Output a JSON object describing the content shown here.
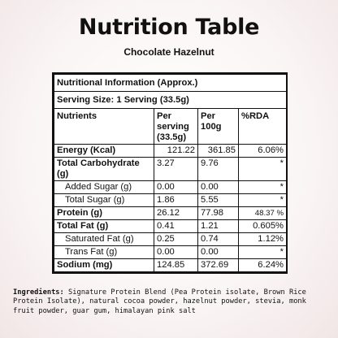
{
  "header": {
    "title": "Nutrition Table",
    "subtitle": "Chocolate Hazelnut"
  },
  "table": {
    "info_title": "Nutritional Information (Approx.)",
    "serving_size": "Serving Size: 1 Serving (33.5g)",
    "columns": [
      "Nutrients",
      "Per serving (33.5g)",
      "Per 100g",
      "%RDA"
    ],
    "rows": [
      {
        "nutrient": "Energy (Kcal)",
        "per_serving": "121.22",
        "per_100g": "361.85",
        "rda": "6.06%"
      },
      {
        "nutrient": "Total Carbohydrate (g)",
        "per_serving": "3.27",
        "per_100g": "9.76",
        "rda": "*"
      },
      {
        "nutrient": "Added Sugar (g)",
        "per_serving": "0.00",
        "per_100g": "0.00",
        "rda": "*"
      },
      {
        "nutrient": "Total Sugar (g)",
        "per_serving": "1.86",
        "per_100g": "5.55",
        "rda": "*"
      },
      {
        "nutrient": "Protein (g)",
        "per_serving": "26.12",
        "per_100g": "77.98",
        "rda": "48.37 %"
      },
      {
        "nutrient": "Total Fat (g)",
        "per_serving": "0.41",
        "per_100g": "1.21",
        "rda": "0.605%"
      },
      {
        "nutrient": "Saturated Fat (g)",
        "per_serving": "0.25",
        "per_100g": "0.74",
        "rda": "1.12%"
      },
      {
        "nutrient": "Trans Fat (g)",
        "per_serving": "0.00",
        "per_100g": "0.00",
        "rda": "*"
      },
      {
        "nutrient": "Sodium (mg)",
        "per_serving": "124.85",
        "per_100g": "372.69",
        "rda": "6.24%"
      }
    ]
  },
  "ingredients": {
    "label": "Ingredients:",
    "text": "Signature Protein Blend (Pea Protein isolate, Brown Rice Protein Isolate), natural cocoa powder, hazelnut powder, stevia, monk fruit powder, guar gum, himalayan pink salt"
  }
}
